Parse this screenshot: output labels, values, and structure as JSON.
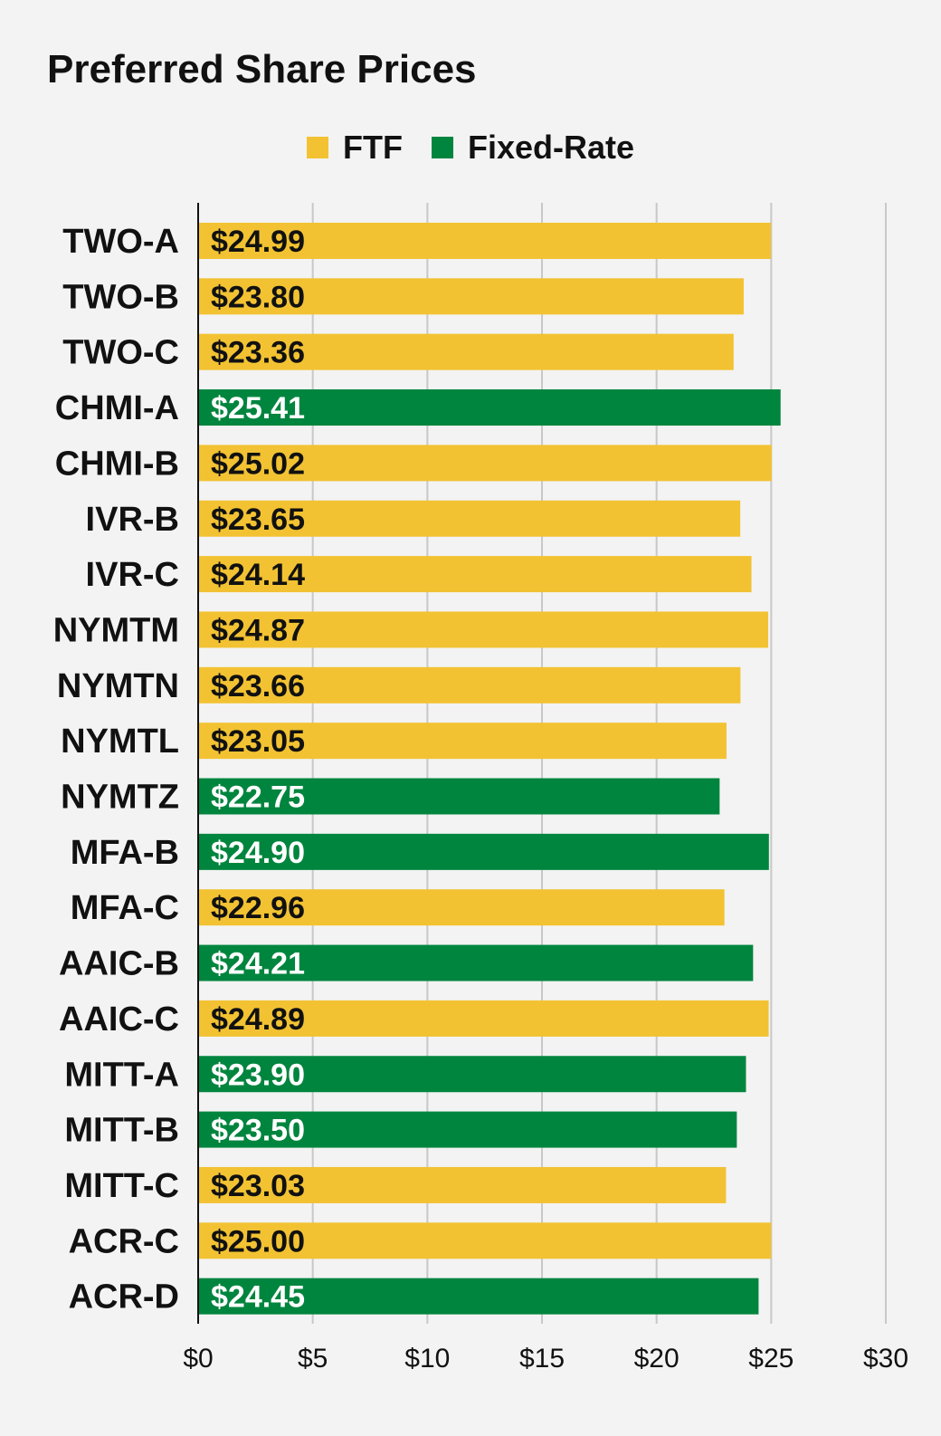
{
  "chart_data": {
    "type": "bar",
    "orientation": "horizontal",
    "title": "Preferred Share Prices",
    "xlabel": "",
    "ylabel": "",
    "xlim": [
      0,
      30
    ],
    "x_ticks": [
      "$0",
      "$5",
      "$10",
      "$15",
      "$20",
      "$25",
      "$30"
    ],
    "grid": true,
    "legend_position": "top-center",
    "series": [
      {
        "name": "FTF",
        "color": "#f2c232"
      },
      {
        "name": "Fixed-Rate",
        "color": "#00853e"
      }
    ],
    "categories": [
      "TWO-A",
      "TWO-B",
      "TWO-C",
      "CHMI-A",
      "CHMI-B",
      "IVR-B",
      "IVR-C",
      "NYMTM",
      "NYMTN",
      "NYMTL",
      "NYMTZ",
      "MFA-B",
      "MFA-C",
      "AAIC-B",
      "AAIC-C",
      "MITT-A",
      "MITT-B",
      "MITT-C",
      "ACR-C",
      "ACR-D"
    ],
    "values": [
      24.99,
      23.8,
      23.36,
      25.41,
      25.02,
      23.65,
      24.14,
      24.87,
      23.66,
      23.05,
      22.75,
      24.9,
      22.96,
      24.21,
      24.89,
      23.9,
      23.5,
      23.03,
      25.0,
      24.45
    ],
    "value_labels": [
      "$24.99",
      "$23.80",
      "$23.36",
      "$25.41",
      "$25.02",
      "$23.65",
      "$24.14",
      "$24.87",
      "$23.66",
      "$23.05",
      "$22.75",
      "$24.90",
      "$22.96",
      "$24.21",
      "$24.89",
      "$23.90",
      "$23.50",
      "$23.03",
      "$25.00",
      "$24.45"
    ],
    "bar_series": [
      "FTF",
      "FTF",
      "FTF",
      "Fixed-Rate",
      "FTF",
      "FTF",
      "FTF",
      "FTF",
      "FTF",
      "FTF",
      "Fixed-Rate",
      "Fixed-Rate",
      "FTF",
      "Fixed-Rate",
      "FTF",
      "Fixed-Rate",
      "Fixed-Rate",
      "FTF",
      "FTF",
      "Fixed-Rate"
    ]
  }
}
